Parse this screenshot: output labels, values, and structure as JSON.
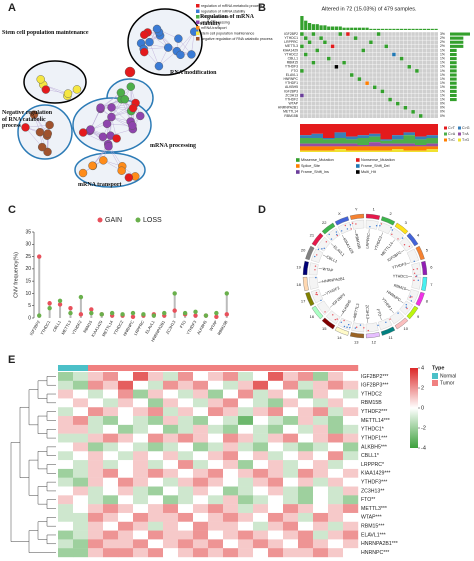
{
  "panel_labels": [
    "A",
    "B",
    "C",
    "D",
    "E"
  ],
  "network": {
    "terms": [
      "regulation of mRNA metabolic process",
      "regulation of mRNA stability",
      "RNA modification",
      "mRNA processing",
      "mRNA transport",
      "stem cell population maintenance",
      "negative regulation of RNA catabolic process"
    ],
    "colors": [
      "#e41a1c",
      "#3a7bd5",
      "#4daf4a",
      "#8e44ad",
      "#ff8c1a",
      "#f5e642",
      "#a0522d"
    ],
    "clusters": [
      "Regulation of mRNA stability",
      "Stem cell population maintenance",
      "RNA modification",
      "mRNA processing",
      "mRNA transport",
      "Negative regulation of RNA catabolic process"
    ]
  },
  "oncoplot": {
    "title": "Altered in 72 (15.03%) of 479 samples.",
    "genes": [
      "IGF2BP2",
      "YTHDC1",
      "LRPPRC",
      "METTL3",
      "KIAA1429",
      "YTHDC2",
      "CBLL1",
      "RBM15",
      "YTHDF3",
      "FTO",
      "ELAVL1",
      "HNRNPC",
      "YTHDF1",
      "ALKBH5",
      "IGF2BP3",
      "ZC3H13",
      "YTHDF2",
      "WTAP",
      "HNRNPA2B1",
      "METTL14",
      "RBM15B"
    ],
    "percent": [
      3,
      2,
      2,
      2,
      1,
      1,
      1,
      1,
      1,
      1,
      1,
      1,
      1,
      1,
      1,
      1,
      1,
      0,
      0,
      0,
      0
    ],
    "percent_labels": [
      "3%",
      "2%",
      "2%",
      "2%",
      "1%",
      "1%",
      "1%",
      "1%",
      "1%",
      "1%",
      "1%",
      "1%",
      "1%",
      "1%",
      "1%",
      "1%",
      "1%",
      "0%",
      "0%",
      "0%",
      "0%"
    ],
    "burden": [
      12,
      8,
      6,
      5,
      5,
      4,
      4,
      3,
      3,
      3,
      3,
      2,
      2,
      2,
      2,
      2,
      2,
      2,
      1,
      1,
      1,
      1,
      1,
      1,
      1,
      1,
      1,
      1,
      1,
      1,
      1,
      1,
      1,
      1,
      1,
      1
    ],
    "mutation_types": [
      "Missense_Mutation",
      "Nonsense_Mutation",
      "Splice_Site",
      "Frame_Shift_Del",
      "Frame_Shift_Ins",
      "Multi_Hit"
    ],
    "mutation_colors": [
      "#33a02c",
      "#e31a1c",
      "#ff7f00",
      "#1f78b4",
      "#6a3d9a",
      "#000000"
    ],
    "mutations": [
      [
        0,
        0,
        0
      ],
      [
        0,
        3,
        0
      ],
      [
        0,
        10,
        0
      ],
      [
        0,
        12,
        1
      ],
      [
        0,
        20,
        0
      ],
      [
        1,
        1,
        0
      ],
      [
        1,
        5,
        0
      ],
      [
        1,
        14,
        0
      ],
      [
        2,
        2,
        0
      ],
      [
        2,
        6,
        0
      ],
      [
        2,
        18,
        0
      ],
      [
        3,
        0,
        0
      ],
      [
        3,
        8,
        1
      ],
      [
        3,
        22,
        0
      ],
      [
        4,
        4,
        0
      ],
      [
        4,
        16,
        0
      ],
      [
        5,
        1,
        0
      ],
      [
        5,
        24,
        3
      ],
      [
        6,
        7,
        0
      ],
      [
        6,
        26,
        0
      ],
      [
        7,
        3,
        0
      ],
      [
        7,
        11,
        0
      ],
      [
        8,
        9,
        5
      ],
      [
        8,
        28,
        0
      ],
      [
        9,
        0,
        0
      ],
      [
        9,
        30,
        0
      ],
      [
        10,
        13,
        0
      ],
      [
        11,
        15,
        0
      ],
      [
        12,
        17,
        2
      ],
      [
        13,
        19,
        0
      ],
      [
        14,
        21,
        0
      ],
      [
        15,
        0,
        4
      ],
      [
        16,
        23,
        0
      ],
      [
        17,
        25,
        0
      ],
      [
        18,
        27,
        0
      ],
      [
        19,
        29,
        0
      ],
      [
        20,
        31,
        0
      ]
    ],
    "transition_types": [
      "C>T",
      "C>G",
      "C>A",
      "T>A",
      "T>C",
      "T>G"
    ],
    "transition_colors": [
      "#e41a1c",
      "#377eb8",
      "#4daf4a",
      "#984ea3",
      "#ff7f00",
      "#f0e130"
    ],
    "transitions": [
      [
        40,
        10,
        20,
        10,
        15,
        5
      ],
      [
        35,
        15,
        20,
        10,
        15,
        5
      ],
      [
        50,
        5,
        15,
        10,
        15,
        5
      ],
      [
        30,
        20,
        20,
        10,
        10,
        10
      ],
      [
        45,
        10,
        15,
        10,
        15,
        5
      ],
      [
        40,
        10,
        25,
        5,
        15,
        5
      ],
      [
        35,
        10,
        20,
        15,
        15,
        5
      ],
      [
        55,
        5,
        10,
        10,
        15,
        5
      ],
      [
        40,
        15,
        15,
        10,
        10,
        10
      ],
      [
        30,
        10,
        30,
        10,
        15,
        5
      ],
      [
        45,
        10,
        20,
        5,
        15,
        5
      ],
      [
        40,
        10,
        20,
        10,
        10,
        10
      ]
    ]
  },
  "chart_data": {
    "type": "lollipop",
    "y_label": "CNV frequency(%)",
    "categories": [
      "IGF2BP2",
      "YTHDC1",
      "CBLL1",
      "METTL3",
      "YTHDF2",
      "RBM15",
      "KIAA1429",
      "METTL14",
      "YTHDC2",
      "HNRNPC",
      "LRPPRC",
      "ELAVL1",
      "HNRNPA2B1",
      "ZC3H13",
      "FTO",
      "YTHDF3",
      "ALKBH5",
      "WTAP",
      "RBM15B"
    ],
    "series": [
      {
        "name": "GAIN",
        "color": "#e8505b",
        "values": [
          25,
          6,
          5.5,
          4,
          1.5,
          3.5,
          1.5,
          1,
          1,
          0.5,
          1,
          1.5,
          1,
          3,
          1.5,
          1,
          1,
          0.5,
          1.5
        ]
      },
      {
        "name": "LOSS",
        "color": "#6ab04c",
        "values": [
          1,
          4,
          7,
          2,
          8.5,
          2,
          1.5,
          2,
          1.5,
          2,
          1.5,
          1,
          2,
          10,
          2,
          2.5,
          1,
          2,
          10
        ]
      }
    ],
    "ylim": [
      0,
      35
    ],
    "yticks": [
      0,
      5,
      10,
      15,
      20,
      25,
      30,
      35
    ]
  },
  "circos": {
    "genes": [
      "LRPPRC",
      "YTHDC2",
      "METTL14",
      "IGF2BP2",
      "YTHDF3",
      "YTHDC1",
      "RBM15",
      "HNRNPC",
      "YTHDF1",
      "FTO",
      "ZC3H13",
      "METTL3",
      "ALKBH5",
      "IGF2BP3",
      "YTHDF2",
      "HNRNPA2B1",
      "WTAP",
      "CBLL1",
      "ELAVL1",
      "KIAA1429",
      "RBM15B"
    ],
    "chromosomes": [
      "1",
      "2",
      "3",
      "4",
      "5",
      "6",
      "7",
      "8",
      "9",
      "10",
      "11",
      "12",
      "13",
      "14",
      "15",
      "16",
      "17",
      "18",
      "19",
      "20",
      "21",
      "22",
      "X",
      "Y"
    ]
  },
  "heatmap": {
    "genes": [
      "IGF2BP2***",
      "IGF2BP3***",
      "YTHDC2",
      "RBM15B",
      "YTHDF2***",
      "METTL14***",
      "YTHDC1*",
      "YTHDF1***",
      "ALKBH5***",
      "CBLL1*",
      "LRPPRC*",
      "KIAA1429***",
      "YTHDF3***",
      "ZC3H13**",
      "FTO**",
      "METTL3***",
      "WTAP***",
      "RBM15***",
      "ELAVL1***",
      "HNRNPA2B1***",
      "HNRNPC***"
    ],
    "type_title": "Type",
    "type_names": [
      "Normal",
      "Tumor"
    ],
    "type_colors": [
      "#4bc0c8",
      "#f08080"
    ],
    "sample_types": [
      "Normal",
      "Normal",
      "Tumor",
      "Tumor",
      "Tumor",
      "Tumor",
      "Tumor",
      "Tumor",
      "Tumor",
      "Tumor",
      "Tumor",
      "Tumor",
      "Tumor",
      "Tumor",
      "Tumor",
      "Tumor",
      "Tumor",
      "Tumor",
      "Tumor",
      "Tumor"
    ],
    "clim": [
      -4,
      4
    ],
    "cticks": [
      4,
      2,
      0,
      -2,
      -4
    ],
    "values": [
      [
        -2,
        -1,
        1,
        2,
        0,
        3,
        1,
        -1,
        2,
        0,
        1,
        2,
        -1,
        0,
        3,
        1,
        2,
        -2,
        1,
        0
      ],
      [
        -1,
        -2,
        2,
        1,
        3,
        0,
        -1,
        2,
        1,
        2,
        0,
        -1,
        1,
        3,
        0,
        2,
        -1,
        1,
        2,
        1
      ],
      [
        1,
        0,
        -1,
        0,
        2,
        -2,
        1,
        0,
        -1,
        1,
        -2,
        0,
        2,
        -1,
        1,
        0,
        -2,
        1,
        0,
        -1
      ],
      [
        0,
        1,
        0,
        -1,
        1,
        0,
        -2,
        1,
        0,
        -1,
        1,
        2,
        0,
        -1,
        -2,
        1,
        0,
        -1,
        1,
        0
      ],
      [
        -1,
        0,
        2,
        1,
        0,
        1,
        2,
        -1,
        1,
        0,
        2,
        1,
        -1,
        1,
        2,
        0,
        1,
        2,
        -1,
        1
      ],
      [
        1,
        2,
        -1,
        -2,
        0,
        -1,
        -2,
        1,
        -1,
        -2,
        0,
        -1,
        -3,
        0,
        -1,
        -2,
        1,
        -1,
        -2,
        0
      ],
      [
        1,
        1,
        -1,
        0,
        -2,
        -1,
        0,
        -2,
        -1,
        1,
        -1,
        -2,
        0,
        -1,
        -2,
        0,
        -1,
        1,
        -2,
        -1
      ],
      [
        -1,
        -1,
        1,
        2,
        1,
        0,
        2,
        1,
        2,
        1,
        0,
        2,
        1,
        -1,
        1,
        2,
        0,
        1,
        2,
        1
      ],
      [
        0,
        1,
        -2,
        -1,
        0,
        -1,
        -2,
        -1,
        0,
        -2,
        -1,
        1,
        -1,
        -2,
        0,
        -1,
        -2,
        -1,
        0,
        -2
      ],
      [
        -1,
        0,
        1,
        0,
        -1,
        1,
        0,
        1,
        -1,
        0,
        1,
        2,
        0,
        1,
        -1,
        0,
        1,
        0,
        2,
        -1
      ],
      [
        0,
        -1,
        1,
        -1,
        0,
        1,
        -1,
        0,
        2,
        -1,
        0,
        1,
        -2,
        0,
        1,
        -1,
        0,
        1,
        -1,
        0
      ],
      [
        -2,
        -1,
        1,
        2,
        0,
        1,
        2,
        1,
        0,
        1,
        2,
        0,
        1,
        2,
        1,
        -1,
        2,
        1,
        0,
        1
      ],
      [
        -1,
        -2,
        1,
        0,
        2,
        1,
        0,
        -1,
        1,
        2,
        1,
        0,
        -1,
        1,
        2,
        0,
        1,
        -1,
        1,
        0
      ],
      [
        0,
        1,
        -1,
        0,
        1,
        -1,
        -2,
        0,
        -1,
        1,
        0,
        -2,
        -1,
        0,
        1,
        -1,
        -2,
        0,
        -1,
        1
      ],
      [
        1,
        0,
        -1,
        -2,
        0,
        -1,
        0,
        -2,
        -1,
        0,
        -1,
        1,
        -2,
        -1,
        0,
        -1,
        -2,
        0,
        -1,
        -2
      ],
      [
        -1,
        0,
        1,
        2,
        1,
        0,
        1,
        2,
        0,
        1,
        2,
        1,
        -1,
        1,
        0,
        2,
        1,
        0,
        1,
        2
      ],
      [
        -1,
        -1,
        2,
        1,
        0,
        2,
        1,
        1,
        2,
        0,
        1,
        2,
        1,
        0,
        2,
        1,
        -1,
        2,
        1,
        0
      ],
      [
        0,
        -1,
        1,
        0,
        2,
        1,
        -1,
        1,
        0,
        2,
        1,
        1,
        0,
        -1,
        1,
        2,
        0,
        1,
        -1,
        1
      ],
      [
        -2,
        -1,
        1,
        2,
        1,
        0,
        2,
        1,
        1,
        2,
        0,
        1,
        2,
        1,
        0,
        1,
        2,
        -1,
        1,
        2
      ],
      [
        -1,
        -2,
        2,
        1,
        1,
        2,
        0,
        1,
        2,
        1,
        2,
        0,
        1,
        2,
        1,
        0,
        2,
        1,
        0,
        1
      ],
      [
        -2,
        -2,
        1,
        2,
        2,
        1,
        2,
        0,
        1,
        2,
        1,
        2,
        1,
        0,
        2,
        1,
        1,
        2,
        1,
        0
      ]
    ]
  }
}
